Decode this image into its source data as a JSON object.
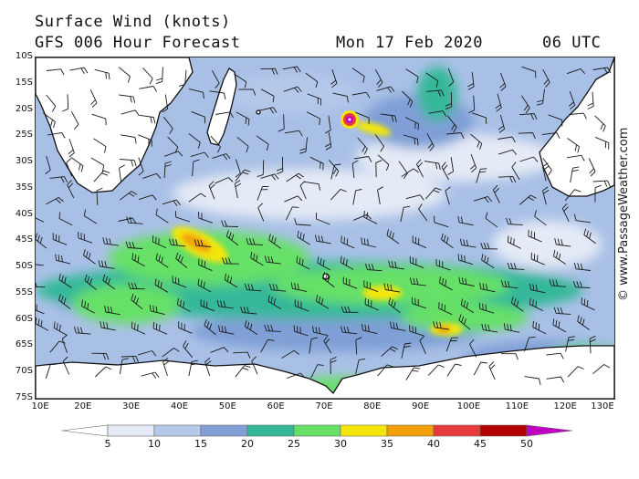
{
  "header": {
    "title": "Surface Wind (knots)",
    "model": "GFS 006 Hour Forecast",
    "date": "Mon 17 Feb 2020",
    "time": "06 UTC"
  },
  "copyright": "© www.PassageWeather.com",
  "latitude_labels": [
    "10S",
    "15S",
    "20S",
    "25S",
    "30S",
    "35S",
    "40S",
    "45S",
    "50S",
    "55S",
    "60S",
    "65S",
    "70S",
    "75S"
  ],
  "longitude_labels": [
    "10E",
    "20E",
    "30E",
    "40E",
    "50E",
    "60E",
    "70E",
    "80E",
    "90E",
    "100E",
    "110E",
    "120E",
    "130E"
  ],
  "scale": {
    "labels": [
      "5",
      "10",
      "15",
      "20",
      "25",
      "30",
      "35",
      "40",
      "45",
      "50"
    ],
    "colors": [
      "#e4eaf6",
      "#b4c8ea",
      "#7f9fd6",
      "#34b89a",
      "#66e066",
      "#f2e60a",
      "#f2a00a",
      "#e83c3c",
      "#b00000",
      "#c000c0"
    ],
    "ocean_color": "#a9c0e6",
    "land_color": "#ffffff"
  },
  "map": {
    "projection": "equirectangular",
    "lon_range": [
      10,
      130
    ],
    "lat_range": [
      -10,
      -75
    ],
    "wind_features": [
      {
        "name": "cyclone",
        "lon": 75,
        "lat": -21,
        "speed": 50
      },
      {
        "name": "jet-south-africa",
        "lon": 45,
        "lat": -44,
        "speed": 40
      },
      {
        "name": "jet-kerguelen",
        "lon": 83,
        "lat": -52,
        "speed": 35
      },
      {
        "name": "jet-low",
        "lon": 94,
        "lat": -58,
        "speed": 40
      }
    ]
  }
}
